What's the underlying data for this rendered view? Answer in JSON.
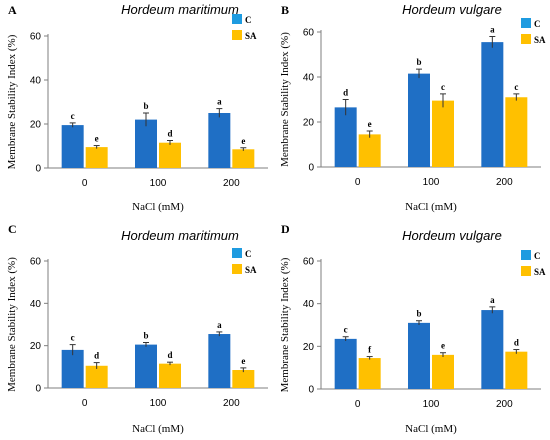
{
  "colors": {
    "control": "#1F6FC5",
    "sa": "#FFC000",
    "axis": "#7f7f7f",
    "text": "#000000"
  },
  "chart_data": [
    {
      "type": "bar",
      "panel_label": "A",
      "title": "Hordeum maritimum",
      "xlabel": "NaCl (mM)",
      "ylabel": "Membrane Stability Index (%)",
      "ylim": [
        0,
        60
      ],
      "yticks": [
        0,
        20,
        40,
        60
      ],
      "categories": [
        "0",
        "100",
        "200"
      ],
      "legend": "top-right",
      "series": [
        {
          "name": "C",
          "values": [
            19.5,
            22,
            25
          ],
          "errors": [
            1,
            3,
            2
          ],
          "letters": [
            "c",
            "b",
            "a"
          ]
        },
        {
          "name": "SA",
          "values": [
            9.5,
            11.5,
            8.5
          ],
          "errors": [
            0.7,
            1,
            0.7
          ],
          "letters": [
            "e",
            "d",
            "e"
          ]
        }
      ]
    },
    {
      "type": "bar",
      "panel_label": "B",
      "title": "Hordeum vulgare",
      "xlabel": "NaCl (mM)",
      "ylabel": "Membrane Stability Index (%)",
      "ylim": [
        0,
        60
      ],
      "yticks": [
        0,
        20,
        40,
        60
      ],
      "categories": [
        "0",
        "100",
        "200"
      ],
      "legend": "top-right",
      "series": [
        {
          "name": "C",
          "values": [
            26.5,
            41.5,
            55.5
          ],
          "errors": [
            3.5,
            2,
            2.5
          ],
          "letters": [
            "d",
            "b",
            "a"
          ]
        },
        {
          "name": "SA",
          "values": [
            14.5,
            29.5,
            31
          ],
          "errors": [
            1.5,
            3,
            1.5
          ],
          "letters": [
            "e",
            "c",
            "c"
          ]
        }
      ]
    },
    {
      "type": "bar",
      "panel_label": "C",
      "title": "Hordeum maritimum",
      "xlabel": "NaCl (mM)",
      "ylabel": "Membrane Stability Index (%)",
      "ylim": [
        0,
        60
      ],
      "yticks": [
        0,
        20,
        40,
        60
      ],
      "categories": [
        "0",
        "100",
        "200"
      ],
      "legend": "top-right",
      "series": [
        {
          "name": "C",
          "values": [
            18,
            20.5,
            25.5
          ],
          "errors": [
            2.5,
            1,
            1
          ],
          "letters": [
            "c",
            "b",
            "a"
          ]
        },
        {
          "name": "SA",
          "values": [
            10.5,
            11.5,
            8.5
          ],
          "errors": [
            1.5,
            0.7,
            1
          ],
          "letters": [
            "d",
            "d",
            "e"
          ]
        }
      ]
    },
    {
      "type": "bar",
      "panel_label": "D",
      "title": "Hordeum vulgare",
      "xlabel": "NaCl (mM)",
      "ylabel": "Membrane Stability Index (%)",
      "ylim": [
        0,
        60
      ],
      "yticks": [
        0,
        20,
        40,
        60
      ],
      "categories": [
        "0",
        "100",
        "200"
      ],
      "legend": "top-right",
      "series": [
        {
          "name": "C",
          "values": [
            23.5,
            31,
            37
          ],
          "errors": [
            1,
            1,
            1.5
          ],
          "letters": [
            "c",
            "b",
            "a"
          ]
        },
        {
          "name": "SA",
          "values": [
            14.5,
            16,
            17.5
          ],
          "errors": [
            0.7,
            1,
            1
          ],
          "letters": [
            "f",
            "e",
            "d"
          ]
        }
      ]
    }
  ]
}
